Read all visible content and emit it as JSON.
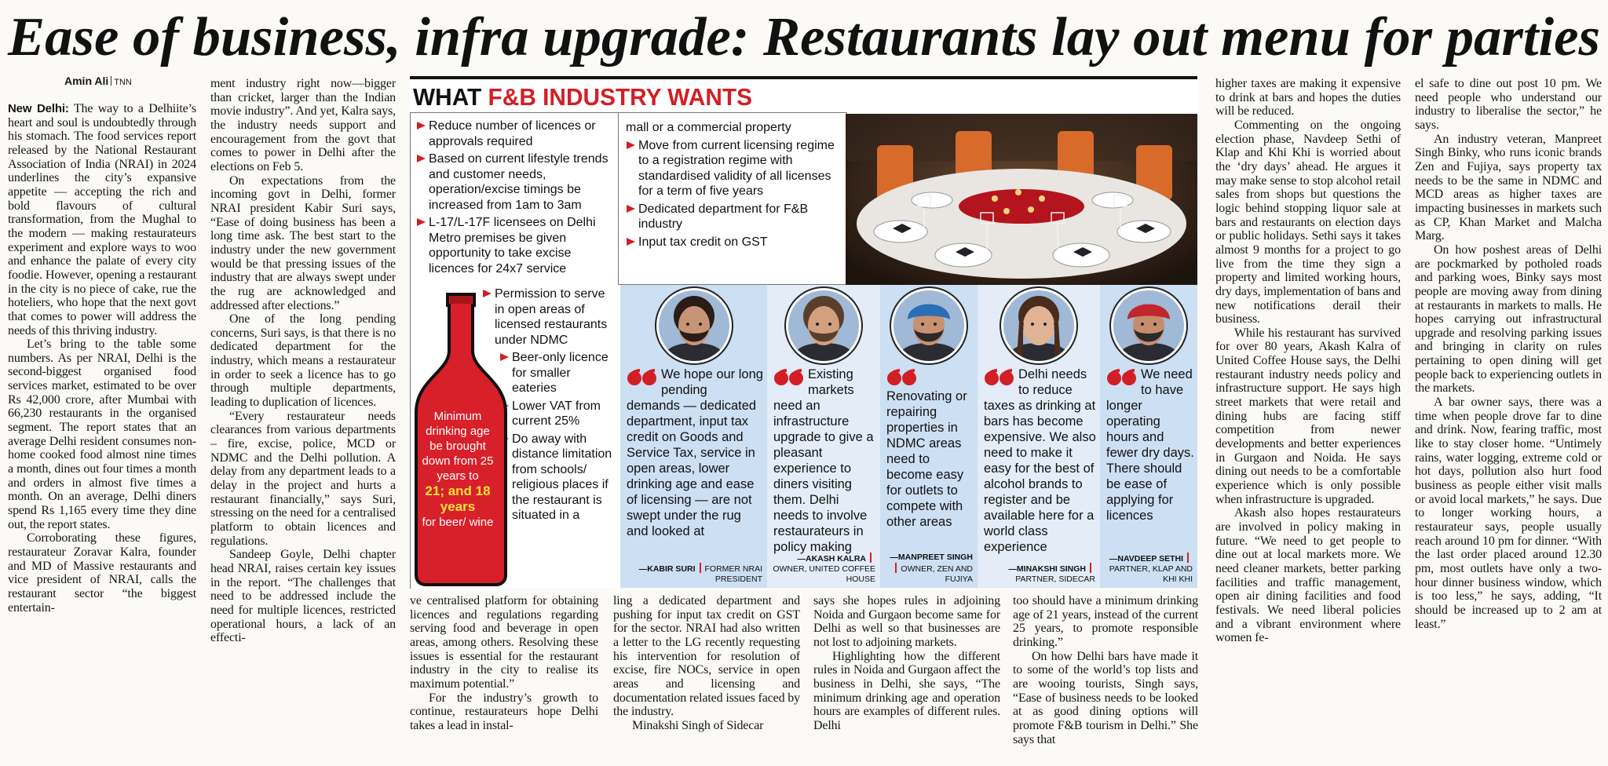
{
  "headline": "Ease of business, infra upgrade: Restaurants lay out menu for parties",
  "byline": {
    "author": "Amin Ali",
    "agency": "TNN"
  },
  "article": {
    "dateline": "New Delhi:",
    "columns": [
      [
        "The way to a Delhiite’s heart and soul is undoubtedly through his stomach. The food services report released by the National Restaurant Association of India (NRAI) in 2024 underlines the city’s expansive appetite — accepting the rich and bold flavours of cultural transformation, from the Mughal to the modern — making restaurateurs experiment and explore ways to woo and enhance the palate of every city foodie. However, opening a restaurant in the city is no piece of cake, rue the hoteliers, who hope that the next govt that comes to power will address the needs of this thriving industry.",
        "Let’s bring to the table some numbers. As per NRAI, Delhi is the second-biggest organised food services market, estimated to be over Rs 42,000 crore, after Mumbai with 66,230 restaurants in the organised segment. The report states that an average Delhi resident consumes non-home cooked food almost nine times a month, dines out four times a month and orders in almost five times a month. On an average, Delhi diners spend Rs 1,165 every time they dine out, the report states.",
        "Corroborating these figures, restaurateur Zoravar Kalra, founder and MD of Massive restaurants and vice president of NRAI, calls the restaurant sector “the biggest entertain-"
      ],
      [
        "ment industry right now—bigger than cricket, larger than the Indian movie industry”. And yet, Kalra says, the industry needs support and encouragement from the govt that comes to power in Delhi after the elections on Feb 5.",
        "On expectations from the incoming govt in Delhi, former NRAI president Kabir Suri says, “Ease of doing business has been a long time ask. The best start to the industry under the new government would be that pressing issues of the industry that are always swept under the rug are acknowledged and addressed after elections.”",
        "One of the long pending concerns, Suri says, is that there is no dedicated department for the industry, which means a restaurateur in order to seek a licence has to go through multiple departments, leading to duplication of licences.",
        "“Every restaurateur needs clearances from various departments – fire, excise, police, MCD or NDMC and the Delhi pollution. A delay from any department leads to a delay in the project and hurts a restaurant financially,” says Suri, stressing on the need for a centralised platform to obtain licences and regulations.",
        "Sandeep Goyle, Delhi chapter head NRAI, raises certain key issues in the report. “The challenges that need to be addressed include the need for multiple licences, restricted operational hours, a lack of an effecti-"
      ],
      [
        "ve centralised platform for obtaining licences and regulations regarding serving food and beverage in open areas, among others. Resolving these issues is essential for the restaurant industry in the city to realise its maximum potential.”",
        "For the industry’s growth to continue, restaurateurs hope Delhi takes a lead in instal-"
      ],
      [
        "ling a dedicated department and pushing for input tax credit on GST for the sector. NRAI had also written a letter to the LG recently requesting his intervention for resolution of excise, fire NOCs, service in open areas and licensing and documentation related issues faced by the industry.",
        "Minakshi Singh of Sidecar"
      ],
      [
        "says she hopes rules in adjoining Noida and Gurgaon become same for Delhi as well so that businesses are not lost to adjoining markets.",
        "Highlighting how the different rules in Noida and Gurgaon affect the business in Delhi, she says, “The minimum drinking age and operation hours are examples of different rules. Delhi"
      ],
      [
        "too should have a minimum drinking age of 21 years, instead of the current 25 years, to promote responsible drinking.”",
        "On how Delhi bars have made it to some of the world’s top lists and are wooing tourists, Singh says, “Ease of business needs to be looked at as good dining options will promote F&B tourism in Delhi.” She says that"
      ],
      [
        "higher taxes are making it expensive to drink at bars and hopes the duties will be reduced.",
        "Commenting on the ongoing election phase, Navdeep Sethi of Klap and Khi Khi is worried about the ‘dry days’ ahead. He argues it may make sense to stop alcohol retail sales from shops but questions the logic behind stopping liquor sale at bars and restaurants on election days or public holidays. Sethi says it takes almost 9 months for a project to go live from the time they sign a property and limited working hours, dry days, implementation of bans and new notifications derail their business.",
        "While his restaurant has survived for over 80 years, Akash Kalra of United Coffee House says, the Delhi restaurant industry needs policy and infrastructure support. He says high street markets that were retail and dining hubs are facing stiff competition from newer developments and better experiences in Gurgaon and Noida. He says dining out needs to be a comfortable experience which is only possible when infrastructure is upgraded.",
        "Akash also hopes restaurateurs are involved in policy making in future. “We need to get people to dine out at local markets more. We need cleaner markets, better parking facilities and traffic management, open air dining facilities and food festivals. We need liberal policies and a vibrant environment where women fe-"
      ],
      [
        "el safe to dine out post 10 pm. We need people who understand our industry to liberalise the sector,” he says.",
        "An industry veteran, Manpreet Singh Binky, who runs iconic brands Zen and Fujiya, says property tax needs to be the same in NDMC and MCD areas as higher taxes are impacting businesses in markets such as CP, Khan Market and Malcha Marg.",
        "On how poshest areas of Delhi are pockmarked by potholed roads and parking woes, Binky says most people are moving away from dining at restaurants in markets to malls. He hopes carrying out infrastructural upgrade and resolving parking issues and bringing in clarity on rules pertaining to open dining will get people back to experiencing outlets in the markets.",
        "A bar owner says, there was a time when people drove far to dine and drink. Now, fearing traffic, most like to stay closer home. “Untimely rains, water logging, extreme cold or hot days, pollution also hurt food business as people either visit malls or avoid local markets,” he says. Due to longer working hours, a restaurateur says, people usually reach around 10 pm for dinner. “With the last order placed around 12.30 pm, most outlets have only a two-hour dinner business window, which is too less,” he says, adding, “It should be increased up to 2 am at least.”"
      ]
    ]
  },
  "infobox": {
    "title_lead": "WHAT",
    "title_highlight": "F&B INDUSTRY WANTS",
    "demands_left": [
      "Reduce number of licences or approvals required",
      "Based on current lifestyle trends and customer needs, operation/excise timings be increased from 1am to 3am",
      "L-17/L-17F licensees on Delhi Metro premises be given opportunity to take excise licences for 24x7 service"
    ],
    "demands_bottle": [
      "Permission to serve in open areas of licensed restaurants under NDMC",
      "Beer-only licence for smaller eateries",
      "Lower VAT from current 25%",
      "Do away with distance limitation from schools/ religious places if the restaurant is situated in a"
    ],
    "demands_middle": [
      "mall or a commercial property",
      "Move from current licensing regime to a registration regime with standardised validity of all licenses for a term of five years",
      "Dedicated department for F&B industry",
      "Input tax credit on GST"
    ],
    "bottle": {
      "lead": "Minimum drinking age be brought down from 25 years to",
      "highlight": "21; and 18 years",
      "tail": "for beer/ wine"
    },
    "quotes": [
      {
        "text": "We hope our long pending demands — dedicated department, input tax credit on Goods and Service Tax, service in open areas, lower drinking age and ease of licensing — are not swept under the rug and looked at",
        "name": "—KABIR SURI",
        "role": "FORMER NRAI PRESIDENT"
      },
      {
        "text": "Existing markets need an infrastructure upgrade to give a pleasant experience to diners visiting them. Delhi needs to involve restaurateurs in policy making",
        "name": "—AKASH KALRA",
        "role": "OWNER, UNITED COFFEE HOUSE"
      },
      {
        "text": "Renovating or repairing properties in NDMC areas need to become easy for outlets to compete with other areas",
        "name": "—MANPREET SINGH",
        "role": "OWNER, ZEN AND FUJIYA"
      },
      {
        "text": "Delhi needs to reduce taxes as drinking at bars has become expensive. We also need to make it easy for the best of alcohol brands to register and be available here for a world class experience",
        "name": "—MINAKSHI SINGH",
        "role": "PARTNER, SIDECAR"
      },
      {
        "text": "We need to have longer operating hours and fewer dry days. There should be ease of applying for licences",
        "name": "—NAVDEEP SETHI",
        "role": "PARTNER, KLAP AND KHI KHI"
      }
    ]
  }
}
